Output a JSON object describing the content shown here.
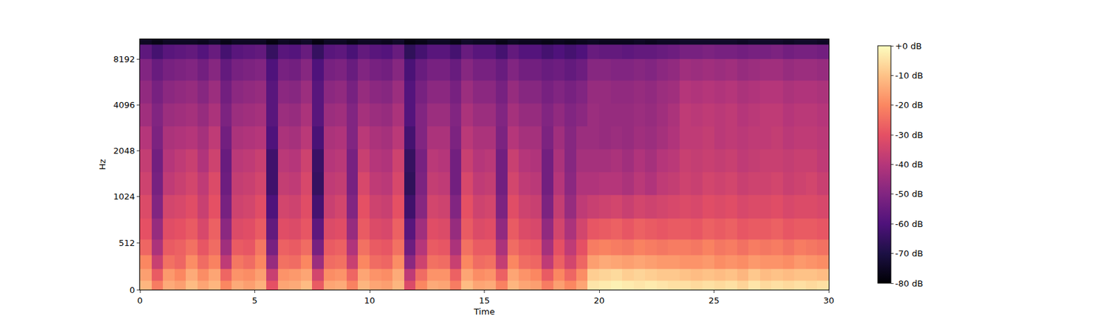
{
  "chart_data": {
    "type": "heatmap",
    "x_label": "Time",
    "y_label": "Hz",
    "xlim": [
      0,
      30
    ],
    "xticks": [
      0,
      5,
      10,
      15,
      20,
      25,
      30
    ],
    "ylim": [
      0,
      11025
    ],
    "yticks": [
      0,
      512,
      1024,
      2048,
      4096,
      8192
    ],
    "x": [
      0.25,
      0.75,
      1.25,
      1.75,
      2.25,
      2.75,
      3.25,
      3.75,
      4.25,
      4.75,
      5.25,
      5.75,
      6.25,
      6.75,
      7.25,
      7.75,
      8.25,
      8.75,
      9.25,
      9.75,
      10.25,
      10.75,
      11.25,
      11.75,
      12.25,
      12.75,
      13.25,
      13.75,
      14.25,
      14.75,
      15.25,
      15.75,
      16.25,
      16.75,
      17.25,
      17.75,
      18.25,
      18.75,
      19.25,
      19.75,
      20.25,
      20.75,
      21.25,
      21.75,
      22.25,
      22.75,
      23.25,
      23.75,
      24.25,
      24.75,
      25.25,
      25.75,
      26.25,
      26.75,
      27.25,
      27.75,
      28.25,
      28.75,
      29.25,
      29.75
    ],
    "y": [
      50,
      150,
      300,
      450,
      650,
      900,
      1250,
      1750,
      2500,
      3500,
      5000,
      7000,
      9500,
      10900
    ],
    "z": [
      [
        -12,
        -16,
        -20,
        -26,
        -30,
        -32,
        -35,
        -37,
        -40,
        -44,
        -47,
        -50,
        -57,
        -75
      ],
      [
        -22,
        -28,
        -36,
        -42,
        -46,
        -50,
        -52,
        -53,
        -51,
        -50,
        -52,
        -55,
        -62,
        -77
      ],
      [
        -14,
        -17,
        -24,
        -28,
        -31,
        -34,
        -38,
        -40,
        -42,
        -45,
        -48,
        -52,
        -58,
        -75
      ],
      [
        -16,
        -20,
        -26,
        -27,
        -30,
        -33,
        -36,
        -38,
        -41,
        -44,
        -47,
        -51,
        -57,
        -75
      ],
      [
        -11,
        -14,
        -19,
        -24,
        -28,
        -31,
        -34,
        -36,
        -40,
        -43,
        -46,
        -50,
        -56,
        -75
      ],
      [
        -15,
        -19,
        -25,
        -29,
        -33,
        -36,
        -38,
        -41,
        -43,
        -46,
        -49,
        -53,
        -59,
        -76
      ],
      [
        -12,
        -15,
        -21,
        -25,
        -27,
        -30,
        -32,
        -35,
        -38,
        -42,
        -45,
        -49,
        -55,
        -74
      ],
      [
        -20,
        -26,
        -38,
        -44,
        -48,
        -52,
        -54,
        -55,
        -53,
        -51,
        -53,
        -56,
        -62,
        -77
      ],
      [
        -14,
        -18,
        -23,
        -28,
        -32,
        -35,
        -37,
        -39,
        -42,
        -45,
        -48,
        -52,
        -58,
        -75
      ],
      [
        -16,
        -19,
        -25,
        -29,
        -31,
        -34,
        -36,
        -38,
        -41,
        -44,
        -47,
        -51,
        -57,
        -75
      ],
      [
        -13,
        -16,
        -20,
        -23,
        -28,
        -31,
        -34,
        -36,
        -40,
        -43,
        -46,
        -50,
        -56,
        -75
      ],
      [
        -30,
        -36,
        -46,
        -52,
        -56,
        -60,
        -63,
        -63,
        -60,
        -58,
        -58,
        -60,
        -65,
        -78
      ],
      [
        -15,
        -18,
        -24,
        -27,
        -31,
        -34,
        -37,
        -39,
        -42,
        -45,
        -48,
        -52,
        -58,
        -75
      ],
      [
        -14,
        -17,
        -25,
        -28,
        -32,
        -35,
        -38,
        -40,
        -43,
        -46,
        -49,
        -53,
        -59,
        -76
      ],
      [
        -11,
        -15,
        -20,
        -25,
        -29,
        -31,
        -33,
        -35,
        -39,
        -42,
        -45,
        -49,
        -55,
        -74
      ],
      [
        -28,
        -34,
        -45,
        -52,
        -57,
        -62,
        -65,
        -64,
        -61,
        -58,
        -58,
        -60,
        -65,
        -78
      ],
      [
        -15,
        -19,
        -25,
        -28,
        -32,
        -36,
        -38,
        -40,
        -42,
        -45,
        -48,
        -52,
        -58,
        -75
      ],
      [
        -14,
        -18,
        -24,
        -27,
        -31,
        -34,
        -37,
        -39,
        -41,
        -44,
        -47,
        -51,
        -57,
        -75
      ],
      [
        -21,
        -26,
        -36,
        -41,
        -46,
        -50,
        -52,
        -52,
        -50,
        -50,
        -52,
        -55,
        -61,
        -77
      ],
      [
        -12,
        -15,
        -20,
        -24,
        -28,
        -30,
        -33,
        -36,
        -39,
        -43,
        -46,
        -50,
        -56,
        -75
      ],
      [
        -15,
        -18,
        -25,
        -28,
        -32,
        -35,
        -38,
        -40,
        -42,
        -45,
        -48,
        -52,
        -58,
        -75
      ],
      [
        -16,
        -19,
        -26,
        -29,
        -33,
        -36,
        -39,
        -41,
        -43,
        -46,
        -49,
        -53,
        -59,
        -76
      ],
      [
        -12,
        -14,
        -19,
        -24,
        -27,
        -30,
        -33,
        -35,
        -39,
        -42,
        -45,
        -49,
        -55,
        -74
      ],
      [
        -32,
        -38,
        -48,
        -54,
        -58,
        -63,
        -66,
        -65,
        -62,
        -59,
        -59,
        -61,
        -66,
        -78
      ],
      [
        -20,
        -25,
        -35,
        -40,
        -44,
        -49,
        -51,
        -52,
        -50,
        -50,
        -52,
        -55,
        -62,
        -77
      ],
      [
        -14,
        -18,
        -24,
        -28,
        -31,
        -34,
        -37,
        -39,
        -42,
        -45,
        -48,
        -52,
        -58,
        -75
      ],
      [
        -15,
        -18,
        -25,
        -29,
        -32,
        -35,
        -38,
        -40,
        -42,
        -45,
        -48,
        -52,
        -58,
        -75
      ],
      [
        -22,
        -27,
        -36,
        -42,
        -46,
        -50,
        -53,
        -53,
        -51,
        -50,
        -52,
        -55,
        -62,
        -77
      ],
      [
        -11,
        -15,
        -20,
        -24,
        -28,
        -30,
        -33,
        -36,
        -39,
        -42,
        -45,
        -49,
        -55,
        -74
      ],
      [
        -15,
        -19,
        -25,
        -28,
        -32,
        -35,
        -38,
        -40,
        -42,
        -45,
        -48,
        -52,
        -58,
        -75
      ],
      [
        -14,
        -18,
        -24,
        -28,
        -31,
        -34,
        -37,
        -39,
        -42,
        -45,
        -48,
        -52,
        -58,
        -75
      ],
      [
        -21,
        -27,
        -37,
        -42,
        -47,
        -51,
        -53,
        -53,
        -51,
        -50,
        -52,
        -55,
        -62,
        -77
      ],
      [
        -12,
        -15,
        -20,
        -25,
        -28,
        -31,
        -34,
        -36,
        -40,
        -43,
        -46,
        -50,
        -56,
        -75
      ],
      [
        -15,
        -18,
        -25,
        -28,
        -32,
        -35,
        -38,
        -40,
        -43,
        -46,
        -49,
        -53,
        -59,
        -76
      ],
      [
        -16,
        -20,
        -26,
        -29,
        -33,
        -36,
        -39,
        -41,
        -43,
        -46,
        -49,
        -53,
        -59,
        -76
      ],
      [
        -22,
        -28,
        -38,
        -43,
        -47,
        -51,
        -53,
        -53,
        -51,
        -50,
        -52,
        -55,
        -62,
        -77
      ],
      [
        -16,
        -20,
        -27,
        -30,
        -34,
        -37,
        -40,
        -42,
        -44,
        -47,
        -50,
        -54,
        -60,
        -76
      ],
      [
        -20,
        -26,
        -34,
        -38,
        -42,
        -46,
        -48,
        -49,
        -49,
        -50,
        -52,
        -56,
        -62,
        -77
      ],
      [
        -15,
        -19,
        -26,
        -30,
        -34,
        -38,
        -41,
        -43,
        -45,
        -48,
        -50,
        -54,
        -60,
        -76
      ],
      [
        -4,
        -8,
        -16,
        -22,
        -29,
        -36,
        -41,
        -43,
        -45,
        -45,
        -46,
        -49,
        -55,
        -75
      ],
      [
        -3,
        -7,
        -14,
        -21,
        -28,
        -35,
        -40,
        -43,
        -46,
        -46,
        -46,
        -49,
        -56,
        -76
      ],
      [
        -2,
        -6,
        -15,
        -22,
        -27,
        -34,
        -40,
        -42,
        -45,
        -46,
        -47,
        -50,
        -56,
        -76
      ],
      [
        -3,
        -8,
        -16,
        -23,
        -29,
        -36,
        -42,
        -44,
        -46,
        -46,
        -47,
        -50,
        -57,
        -76
      ],
      [
        -4,
        -7,
        -15,
        -21,
        -27,
        -34,
        -39,
        -41,
        -44,
        -45,
        -46,
        -49,
        -56,
        -75
      ],
      [
        -3,
        -8,
        -16,
        -22,
        -28,
        -35,
        -41,
        -43,
        -45,
        -46,
        -47,
        -50,
        -56,
        -76
      ],
      [
        -4,
        -9,
        -17,
        -23,
        -29,
        -34,
        -38,
        -40,
        -43,
        -44,
        -45,
        -48,
        -55,
        -75
      ],
      [
        -5,
        -9,
        -17,
        -22,
        -28,
        -33,
        -37,
        -39,
        -41,
        -42,
        -44,
        -47,
        -54,
        -75
      ],
      [
        -5,
        -10,
        -18,
        -22,
        -28,
        -32,
        -35,
        -36,
        -38,
        -38,
        -40,
        -44,
        -52,
        -74
      ],
      [
        -6,
        -11,
        -18,
        -23,
        -29,
        -33,
        -36,
        -37,
        -38,
        -39,
        -41,
        -45,
        -52,
        -74
      ],
      [
        -5,
        -10,
        -17,
        -21,
        -27,
        -31,
        -34,
        -36,
        -37,
        -38,
        -40,
        -44,
        -51,
        -74
      ],
      [
        -6,
        -11,
        -19,
        -23,
        -28,
        -32,
        -35,
        -37,
        -39,
        -39,
        -41,
        -45,
        -52,
        -74
      ],
      [
        -5,
        -10,
        -18,
        -22,
        -27,
        -31,
        -34,
        -36,
        -38,
        -38,
        -40,
        -44,
        -52,
        -74
      ],
      [
        -7,
        -12,
        -19,
        -24,
        -29,
        -33,
        -36,
        -38,
        -39,
        -40,
        -42,
        -46,
        -53,
        -75
      ],
      [
        -4,
        -9,
        -17,
        -22,
        -28,
        -32,
        -35,
        -37,
        -38,
        -39,
        -41,
        -45,
        -52,
        -74
      ],
      [
        -6,
        -11,
        -18,
        -23,
        -28,
        -32,
        -35,
        -36,
        -38,
        -38,
        -40,
        -44,
        -52,
        -74
      ],
      [
        -5,
        -10,
        -18,
        -22,
        -27,
        -31,
        -34,
        -36,
        -37,
        -38,
        -40,
        -44,
        -51,
        -74
      ],
      [
        -6,
        -11,
        -19,
        -24,
        -29,
        -33,
        -36,
        -37,
        -39,
        -40,
        -42,
        -46,
        -53,
        -75
      ],
      [
        -5,
        -10,
        -17,
        -22,
        -28,
        -32,
        -35,
        -36,
        -38,
        -39,
        -41,
        -45,
        -52,
        -74
      ],
      [
        -6,
        -10,
        -18,
        -23,
        -28,
        -32,
        -34,
        -36,
        -38,
        -39,
        -41,
        -45,
        -52,
        -74
      ],
      [
        -5,
        -11,
        -19,
        -24,
        -29,
        -33,
        -36,
        -38,
        -39,
        -40,
        -42,
        -46,
        -53,
        -75
      ]
    ],
    "zlim": [
      -80,
      0
    ],
    "zticks": [
      {
        "value": 0,
        "label": "+0 dB"
      },
      {
        "value": -10,
        "label": "-10 dB"
      },
      {
        "value": -20,
        "label": "-20 dB"
      },
      {
        "value": -30,
        "label": "-30 dB"
      },
      {
        "value": -40,
        "label": "-40 dB"
      },
      {
        "value": -50,
        "label": "-50 dB"
      },
      {
        "value": -60,
        "label": "-60 dB"
      },
      {
        "value": -70,
        "label": "-70 dB"
      },
      {
        "value": -80,
        "label": "-80 dB"
      }
    ]
  }
}
